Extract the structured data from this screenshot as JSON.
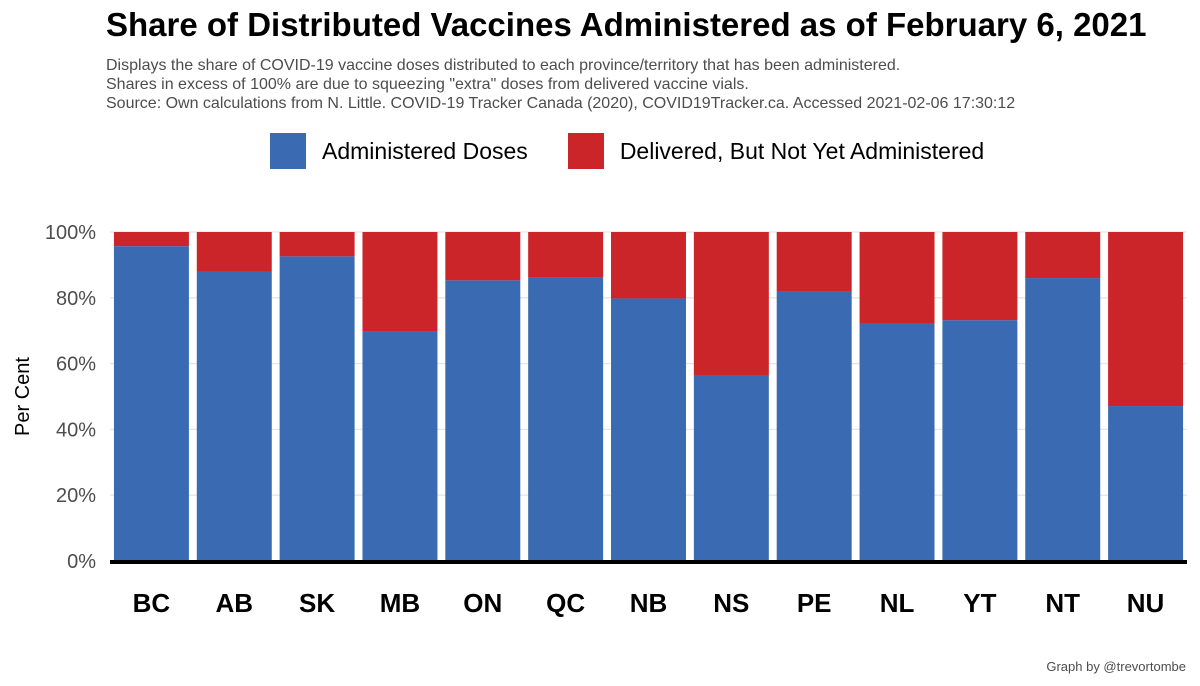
{
  "title": "Share of Distributed Vaccines Administered as of February 6, 2021",
  "subtitle_lines": [
    "Displays the share of COVID-19 vaccine doses distributed to each province/territory that has been administered.",
    "Shares in excess of 100% are due to squeezing \"extra\" doses from delivered vaccine vials.",
    "Source: Own calculations from N. Little. COVID-19 Tracker Canada (2020), COVID19Tracker.ca. Accessed 2021-02-06 17:30:12"
  ],
  "legend": [
    {
      "label": "Administered Doses",
      "color": "#3a6bb2"
    },
    {
      "label": "Delivered, But Not Yet Administered",
      "color": "#cc2529"
    }
  ],
  "caption": "Graph by @trevortombe",
  "chart_data": {
    "type": "bar",
    "stacked": true,
    "title": "Share of Distributed Vaccines Administered as of February 6, 2021",
    "xlabel": "",
    "ylabel": "Per Cent",
    "ylim": [
      0,
      100
    ],
    "yticks": [
      0,
      20,
      40,
      60,
      80,
      100
    ],
    "ytick_labels": [
      "0%",
      "20%",
      "40%",
      "60%",
      "80%",
      "100%"
    ],
    "grid": true,
    "legend_position": "top",
    "categories": [
      "BC",
      "AB",
      "SK",
      "MB",
      "ON",
      "QC",
      "NB",
      "NS",
      "PE",
      "NL",
      "YT",
      "NT",
      "NU"
    ],
    "series": [
      {
        "name": "Administered Doses",
        "color": "#3a6bb2",
        "values": [
          95.7,
          88.0,
          92.6,
          69.9,
          85.3,
          86.2,
          79.8,
          56.4,
          81.8,
          72.2,
          73.2,
          86.0,
          47.1
        ]
      },
      {
        "name": "Delivered, But Not Yet Administered",
        "color": "#cc2529",
        "values": [
          4.3,
          12.0,
          7.4,
          30.1,
          14.7,
          13.8,
          20.2,
          43.6,
          18.2,
          27.8,
          26.8,
          14.0,
          52.9
        ]
      }
    ]
  }
}
